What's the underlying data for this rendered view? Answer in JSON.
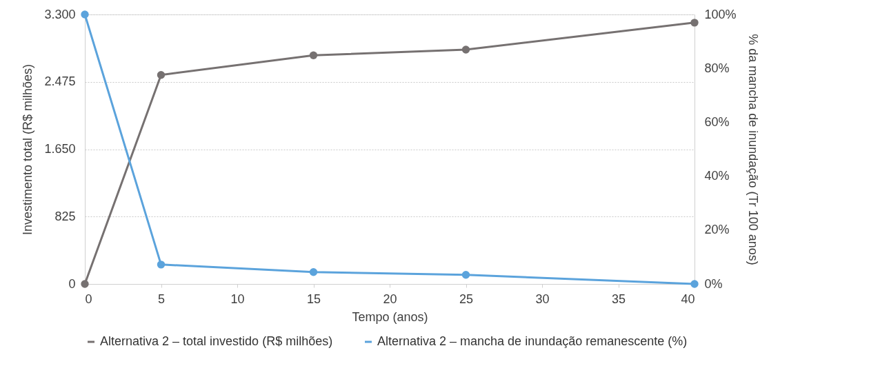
{
  "chart_data": {
    "type": "line",
    "xlabel": "Tempo (anos)",
    "ylabel": "Investimento total (R$ milhões)",
    "y2label": "% da mancha de inundação (Tr 100 anos)",
    "x": [
      0,
      5,
      15,
      25,
      40
    ],
    "series": [
      {
        "name": "Alternativa 2 – total investido (R$ milhões)",
        "color": "#767171",
        "values": [
          0,
          2560,
          2800,
          2870,
          3200
        ]
      },
      {
        "name": "Alternativa 2 – mancha de inundação remanescente (%)",
        "color": "#5ba3dc",
        "axis": "y2",
        "values": [
          100,
          7.2,
          4.4,
          3.4,
          0
        ]
      }
    ],
    "xlim": [
      0,
      40
    ],
    "xticks": [
      0,
      5,
      10,
      15,
      20,
      25,
      30,
      35,
      40
    ],
    "ylim": [
      0,
      3300
    ],
    "yticks": [
      0,
      825,
      {
        "value": 1650,
        "label": "1.650"
      },
      {
        "value": 2475,
        "label": "2.475"
      },
      {
        "value": 3300,
        "label": "3.300"
      }
    ],
    "y2lim": [
      0,
      100
    ],
    "y2ticks": [
      {
        "value": 0,
        "label": "0%"
      },
      {
        "value": 20,
        "label": "20%"
      },
      {
        "value": 40,
        "label": "40%"
      },
      {
        "value": 60,
        "label": "60%"
      },
      {
        "value": 80,
        "label": "80%"
      },
      {
        "value": 100,
        "label": "100%"
      }
    ],
    "grid": "y",
    "legend": "bottom",
    "marker": "circle",
    "line_style": "solid"
  }
}
